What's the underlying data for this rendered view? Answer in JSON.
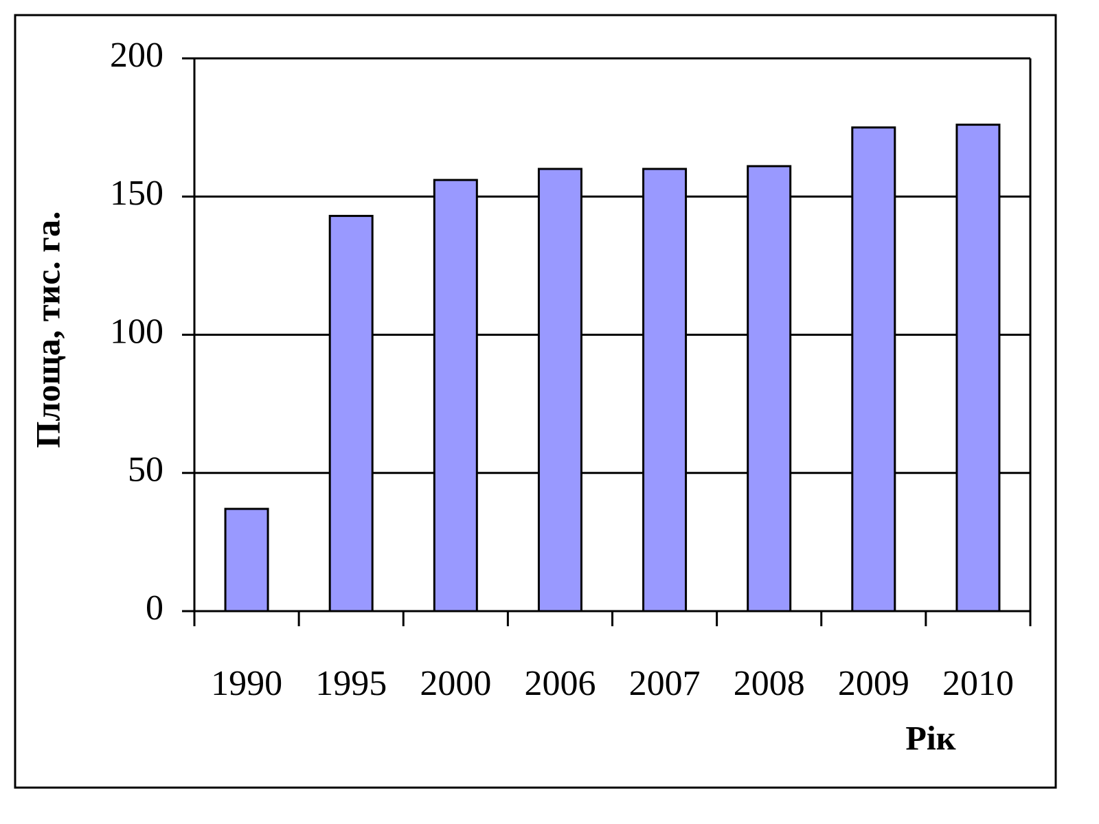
{
  "chart_data": {
    "type": "bar",
    "x_label": "Рік",
    "y_label": "Площа, тис. га.",
    "categories": [
      "1990",
      "1995",
      "2000",
      "2006",
      "2007",
      "2008",
      "2009",
      "2010"
    ],
    "values": [
      37,
      143,
      156,
      160,
      160,
      161,
      175,
      176
    ],
    "color": "#9999ff",
    "ylim": [
      0,
      200
    ],
    "yticks": [
      0,
      50,
      100,
      150,
      200
    ],
    "grid": true
  }
}
